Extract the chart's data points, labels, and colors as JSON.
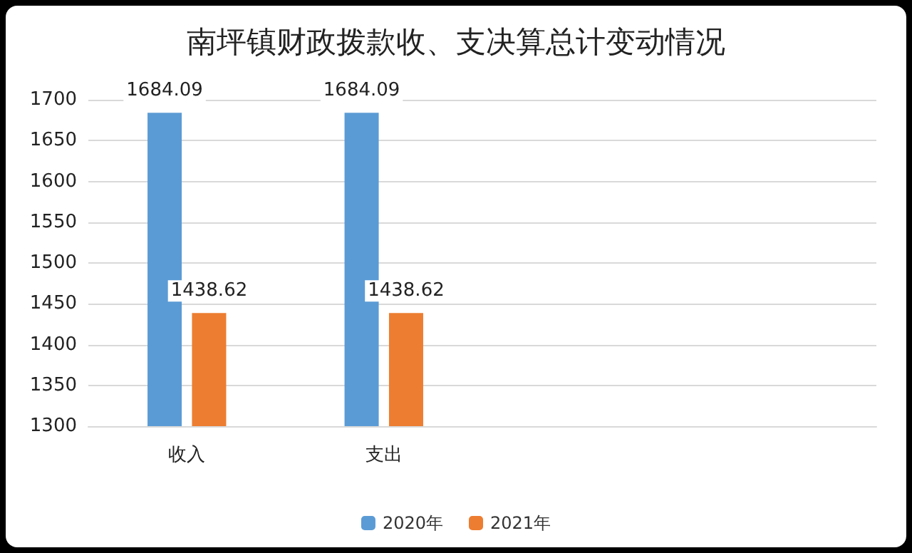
{
  "chart_data": {
    "type": "bar",
    "title": "南坪镇财政拨款收、支决算总计变动情况",
    "categories": [
      "收入",
      "支出",
      null,
      null
    ],
    "series": [
      {
        "name": "2020年",
        "color": "#5b9bd5",
        "values": [
          1684.09,
          1684.09,
          null,
          null
        ]
      },
      {
        "name": "2021年",
        "color": "#ed7d31",
        "values": [
          1438.62,
          1438.62,
          null,
          null
        ]
      }
    ],
    "ylim": [
      1300,
      1700
    ],
    "yticks": [
      1300,
      1350,
      1400,
      1450,
      1500,
      1550,
      1600,
      1650,
      1700
    ],
    "grid": "y",
    "legend": "bottom",
    "data_labels": true
  }
}
